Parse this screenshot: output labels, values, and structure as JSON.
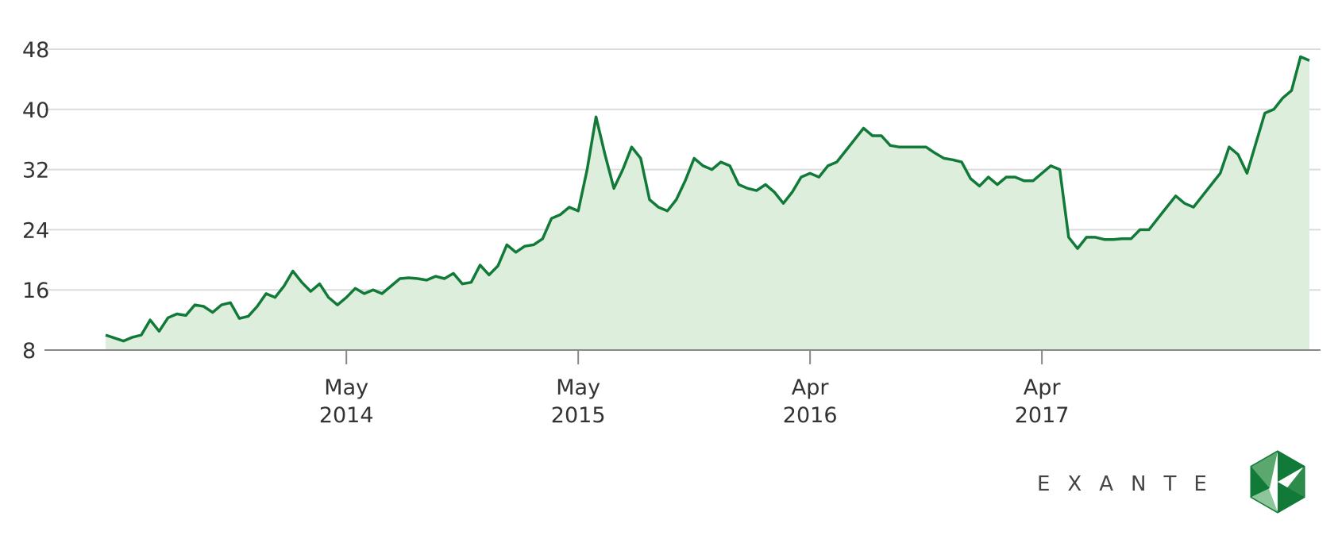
{
  "chart_data": {
    "type": "area",
    "categories": [
      null,
      null,
      null,
      null,
      null,
      null,
      null,
      null,
      null,
      null,
      null,
      null,
      null,
      null,
      null,
      null,
      null,
      null,
      null,
      null,
      null,
      null,
      null,
      null,
      null,
      null,
      null,
      "May 2014",
      null,
      null,
      null,
      null,
      null,
      null,
      null,
      null,
      null,
      null,
      null,
      null,
      null,
      null,
      null,
      null,
      null,
      null,
      null,
      null,
      null,
      null,
      null,
      null,
      null,
      "May 2015",
      null,
      null,
      null,
      null,
      null,
      null,
      null,
      null,
      null,
      null,
      null,
      null,
      null,
      null,
      null,
      null,
      null,
      null,
      null,
      null,
      null,
      null,
      null,
      null,
      null,
      "Apr 2016",
      null,
      null,
      null,
      null,
      null,
      null,
      null,
      null,
      null,
      null,
      null,
      null,
      null,
      null,
      null,
      null,
      null,
      null,
      null,
      null,
      null,
      null,
      null,
      null,
      null,
      "Apr 2017",
      null,
      null,
      null,
      null,
      null,
      null,
      null,
      null,
      null,
      null,
      null,
      null,
      null,
      null,
      null,
      null,
      null,
      null,
      null,
      null,
      null,
      null,
      null,
      null,
      null,
      null,
      null,
      null,
      null,
      null
    ],
    "values": [
      10.0,
      9.6,
      9.2,
      9.7,
      10.0,
      12.0,
      10.5,
      12.3,
      12.8,
      12.6,
      14.0,
      13.8,
      13.0,
      14.0,
      14.3,
      12.2,
      12.5,
      13.8,
      15.5,
      15.0,
      16.5,
      18.5,
      17.0,
      15.8,
      16.8,
      15.0,
      14.0,
      15.0,
      16.2,
      15.5,
      16.0,
      15.5,
      16.5,
      17.5,
      17.6,
      17.5,
      17.3,
      17.8,
      17.5,
      18.2,
      16.8,
      17.0,
      19.3,
      18.0,
      19.2,
      22.0,
      21.0,
      21.8,
      22.0,
      22.8,
      25.5,
      26.0,
      27.0,
      26.5,
      32.0,
      39.0,
      34.0,
      29.5,
      32.0,
      35.0,
      33.5,
      28.0,
      27.0,
      26.5,
      28.0,
      30.5,
      33.5,
      32.5,
      32.0,
      33.0,
      32.5,
      30.0,
      29.5,
      29.2,
      30.0,
      29.0,
      27.5,
      29.0,
      31.0,
      31.5,
      31.0,
      32.5,
      33.0,
      34.5,
      36.0,
      37.5,
      36.5,
      36.5,
      35.2,
      35.0,
      35.0,
      35.0,
      35.0,
      34.2,
      33.5,
      33.3,
      33.0,
      30.8,
      29.8,
      31.0,
      30.0,
      31.0,
      31.0,
      30.5,
      30.5,
      31.5,
      32.5,
      32.0,
      23.0,
      21.5,
      23.0,
      23.0,
      22.7,
      22.7,
      22.8,
      22.8,
      24.0,
      24.0,
      25.5,
      27.0,
      28.5,
      27.5,
      27.0,
      28.5,
      30.0,
      31.5,
      35.0,
      34.0,
      31.5,
      35.5,
      39.5,
      40.0,
      41.5,
      42.5,
      47.0,
      46.5
    ],
    "color": "#117a38",
    "fill_color": "#ddeedd",
    "ylim": [
      8,
      48
    ],
    "yticks": [
      8,
      16,
      24,
      32,
      40,
      48
    ],
    "grid": true
  },
  "logo": {
    "text": "EXANTE"
  }
}
